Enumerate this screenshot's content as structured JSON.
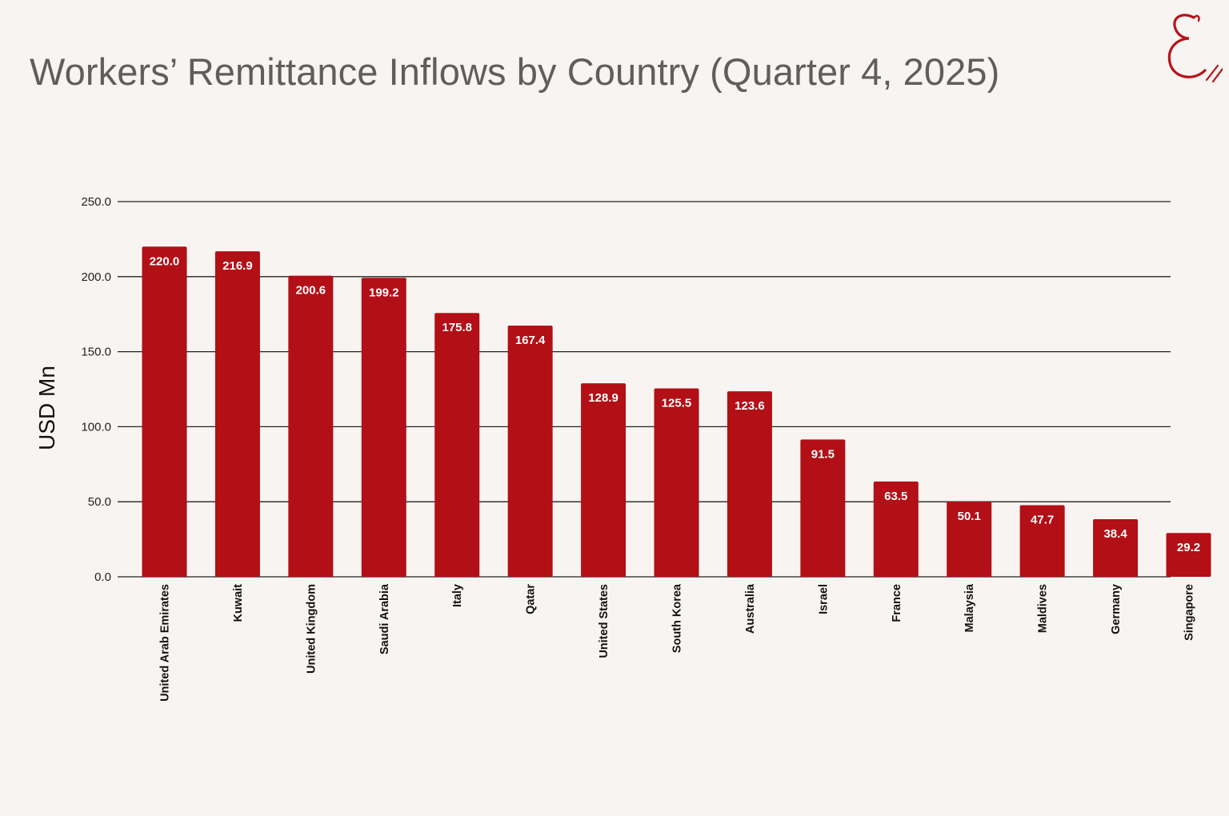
{
  "title": "Workers’ Remittance Inflows by Country (Quarter 4, 2025)",
  "logo": {
    "icon": "brand-e-logo-icon",
    "color": "#b5121b"
  },
  "colors": {
    "bar": "#b20f16",
    "label": "#ffffff",
    "grid": "#222222",
    "title": "#5e5e5e",
    "background": "#f8f4f1"
  },
  "chart_data": {
    "type": "bar",
    "title": "Workers’ Remittance Inflows by Country (Quarter 4, 2025)",
    "xlabel": "",
    "ylabel": "USD  Mn",
    "ylim": [
      0,
      250
    ],
    "yticks": [
      0,
      50,
      100,
      150,
      200,
      250
    ],
    "ytick_labels": [
      "0.0",
      "50.0",
      "100.0",
      "150.0",
      "200.0",
      "250.0"
    ],
    "grid": true,
    "legend": "none",
    "categories": [
      "United Arab Emirates",
      "Kuwait",
      "United Kingdom",
      "Saudi Arabia",
      "Italy",
      "Qatar",
      "United States",
      "South Korea",
      "Australia",
      "Israel",
      "France",
      "Malaysia",
      "Maldives",
      "Germany",
      "Singapore"
    ],
    "values": [
      220.0,
      216.9,
      200.6,
      199.2,
      175.8,
      167.4,
      128.9,
      125.5,
      123.6,
      91.5,
      63.5,
      50.1,
      47.7,
      38.4,
      29.2
    ],
    "value_labels": [
      "220.0",
      "216.9",
      "200.6",
      "199.2",
      "175.8",
      "167.4",
      "128.9",
      "125.5",
      "123.6",
      "91.5",
      "63.5",
      "50.1",
      "47.7",
      "38.4",
      "29.2"
    ]
  }
}
